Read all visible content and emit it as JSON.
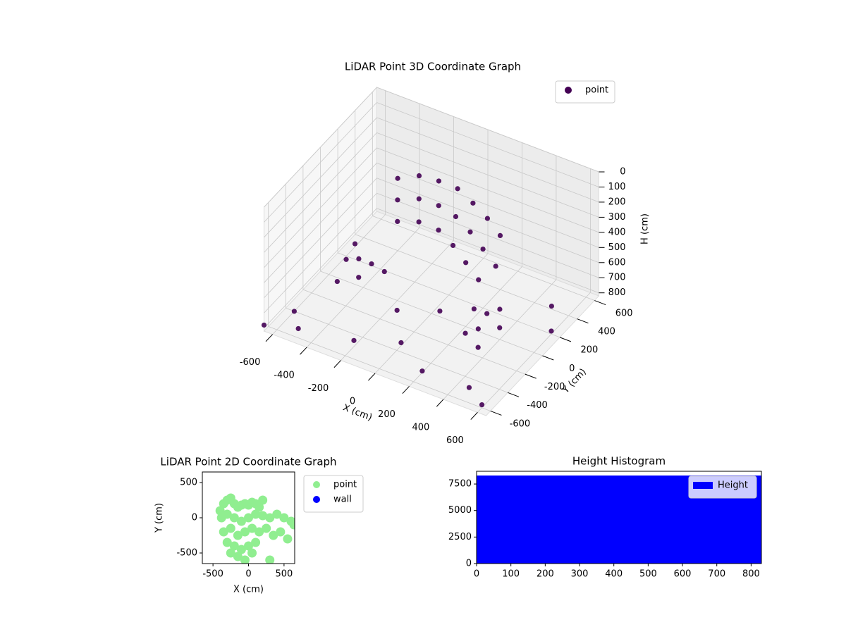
{
  "chart_data": [
    {
      "type": "scatter3d",
      "title": "LiDAR Point 3D Coordinate Graph",
      "xlabel": "X (cm)",
      "ylabel": "Y (cm)",
      "zlabel": "H (cm)",
      "xlim": [
        -650,
        650
      ],
      "ylim": [
        -650,
        650
      ],
      "zlim": [
        0,
        820
      ],
      "z_inverted": true,
      "grid": true,
      "legend": "upper right",
      "xticks": [
        -600,
        -400,
        -200,
        0,
        200,
        400,
        600
      ],
      "yticks": [
        -600,
        -400,
        -200,
        0,
        200,
        400,
        600
      ],
      "zticks": [
        0,
        100,
        200,
        300,
        400,
        500,
        600,
        700,
        800
      ],
      "series": [
        {
          "name": "point",
          "color": "#440154",
          "x": [
            -350,
            -250,
            -150,
            -50,
            50,
            150,
            250,
            -300,
            -200,
            -100,
            0,
            100,
            200,
            300,
            -250,
            -150,
            -50,
            50,
            150,
            250,
            300,
            350,
            400,
            350,
            450,
            300,
            400,
            -300,
            -400,
            -350,
            -250,
            -450,
            -600,
            -650,
            -500,
            -200,
            0,
            200,
            500,
            600,
            600,
            500,
            -600,
            -550,
            100,
            -100
          ],
          "y": [
            300,
            350,
            380,
            400,
            380,
            350,
            300,
            200,
            250,
            280,
            280,
            250,
            200,
            150,
            100,
            150,
            180,
            150,
            100,
            50,
            -100,
            -50,
            0,
            -150,
            -100,
            -200,
            -250,
            -100,
            -50,
            -150,
            -50,
            -200,
            -400,
            -650,
            -550,
            -500,
            -350,
            -500,
            -550,
            -600,
            200,
            400,
            300,
            100,
            -100,
            -200
          ],
          "z": [
            260,
            230,
            240,
            260,
            300,
            340,
            380,
            320,
            300,
            320,
            350,
            390,
            430,
            470,
            380,
            370,
            400,
            440,
            480,
            520,
            600,
            640,
            620,
            680,
            660,
            700,
            720,
            560,
            600,
            640,
            620,
            680,
            820,
            780,
            800,
            780,
            800,
            810,
            760,
            800,
            800,
            800,
            800,
            760,
            700,
            720
          ]
        }
      ]
    },
    {
      "type": "scatter",
      "title": "LiDAR Point 2D Coordinate Graph",
      "xlabel": "X (cm)",
      "ylabel": "Y (cm)",
      "xlim": [
        -650,
        650
      ],
      "ylim": [
        -650,
        650
      ],
      "xticks": [
        -500,
        0,
        500
      ],
      "yticks": [
        -500,
        0,
        500
      ],
      "legend": "outside right",
      "series": [
        {
          "name": "point",
          "color": "#90ee90",
          "x": [
            -400,
            -350,
            -300,
            -250,
            -200,
            -150,
            -100,
            -50,
            0,
            50,
            100,
            150,
            200,
            -380,
            -300,
            -200,
            -100,
            0,
            100,
            200,
            300,
            400,
            500,
            600,
            640,
            -350,
            -250,
            -150,
            -50,
            50,
            150,
            250,
            350,
            450,
            550,
            -300,
            -200,
            -100,
            0,
            100,
            -250,
            -150,
            -50,
            50,
            300
          ],
          "y": [
            100,
            200,
            250,
            280,
            200,
            150,
            180,
            200,
            180,
            220,
            200,
            150,
            250,
            0,
            50,
            0,
            -50,
            0,
            50,
            30,
            0,
            50,
            0,
            -50,
            -100,
            -200,
            -150,
            -250,
            -200,
            -150,
            -200,
            -150,
            -250,
            -200,
            -300,
            -350,
            -400,
            -450,
            -400,
            -350,
            -500,
            -550,
            -600,
            -500,
            -600
          ]
        },
        {
          "name": "wall",
          "color": "#0000ff",
          "x": [],
          "y": []
        }
      ]
    },
    {
      "type": "histogram",
      "title": "Height Histogram",
      "legend": "upper right",
      "xlim": [
        0,
        830
      ],
      "ylim": [
        0,
        8700
      ],
      "xticks": [
        0,
        100,
        200,
        300,
        400,
        500,
        600,
        700,
        800
      ],
      "yticks": [
        0,
        2500,
        5000,
        7500
      ],
      "series": [
        {
          "name": "Height",
          "color": "#0000ff",
          "bins": [
            0,
            830
          ],
          "values": [
            8300
          ]
        }
      ]
    }
  ]
}
